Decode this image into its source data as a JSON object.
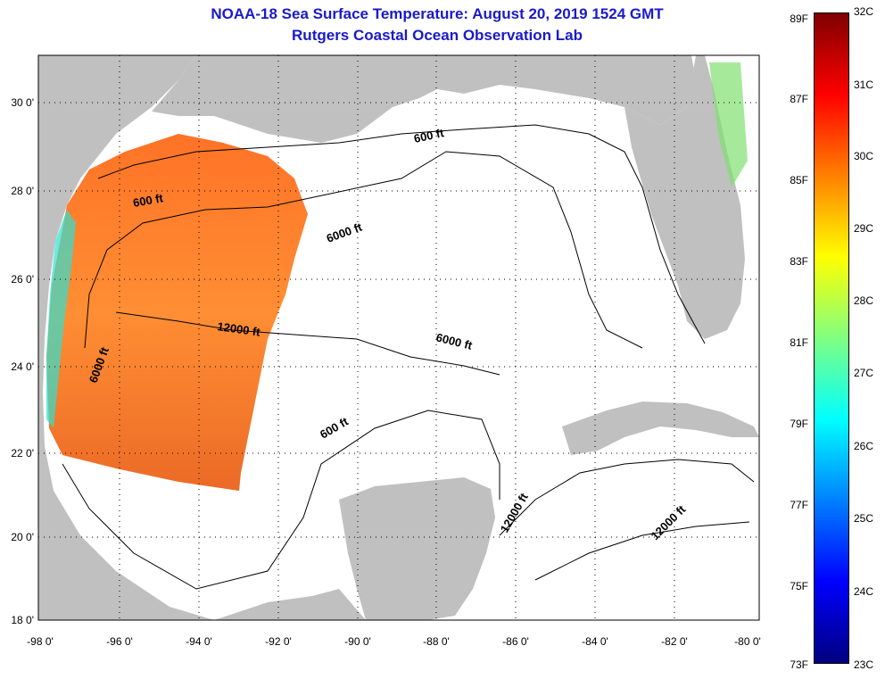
{
  "title": {
    "line1": "NOAA-18 Sea Surface Temperature:  August 20, 2019 1524 GMT",
    "line2": "Rutgers Coastal Ocean Observation Lab"
  },
  "map": {
    "lat_labels": [
      "30 0'",
      "28 0'",
      "26 0'",
      "24 0'",
      "22 0'",
      "20 0'",
      "18 0'"
    ],
    "lon_labels": [
      "-98 0'",
      "-96 0'",
      "-94 0'",
      "-92 0'",
      "-90 0'",
      "-88 0'",
      "-86 0'",
      "-84 0'",
      "-82 0'",
      "-80 0'"
    ],
    "contour_labels": {
      "c600_north": "600 ft",
      "c600_west": "600 ft",
      "c600_south": "600 ft",
      "c6000_north": "6000 ft",
      "c6000_west": "6000 ft",
      "c6000_mid": "6000 ft",
      "c12000_west": "12000 ft",
      "c12000_south": "12000 ft",
      "c12000_east": "12000 ft"
    },
    "colors": {
      "land": "#c0c0c0",
      "ocean": "#ffffff",
      "grid": "#000000"
    }
  },
  "colorbar": {
    "fahrenheit": [
      "89F",
      "87F",
      "85F",
      "83F",
      "81F",
      "79F",
      "77F",
      "75F",
      "73F"
    ],
    "celsius": [
      "32C",
      "31C",
      "30C",
      "29C",
      "28C",
      "27C",
      "26C",
      "25C",
      "24C",
      "23C"
    ],
    "colors": [
      "#000080",
      "#0000ff",
      "#0080ff",
      "#00ffff",
      "#80ff80",
      "#ffff00",
      "#ff8000",
      "#ff0000",
      "#800000"
    ]
  }
}
